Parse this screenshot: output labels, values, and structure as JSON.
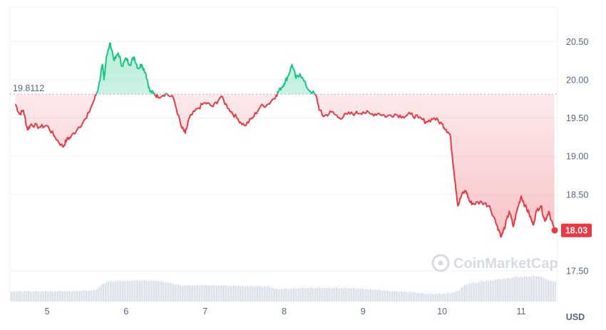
{
  "chart_data": {
    "type": "line",
    "reference_value": 19.8112,
    "reference_label": "19.8112",
    "last_value": 18.03,
    "last_label": "18.03",
    "y_ticks": [
      "20.50",
      "20.00",
      "19.50",
      "19.00",
      "18.50",
      "18.03",
      "17.50"
    ],
    "y_tick_values": [
      20.5,
      20.0,
      19.5,
      19.0,
      18.5,
      17.5
    ],
    "x_ticks": [
      "5",
      "6",
      "7",
      "8",
      "9",
      "10",
      "11"
    ],
    "x_tick_values": [
      5,
      6,
      7,
      8,
      9,
      10,
      11
    ],
    "y_unit": "USD",
    "ylim": [
      17.1,
      20.95
    ],
    "xlim": [
      4.53,
      11.46
    ],
    "grid": true,
    "colors": {
      "above": "#16c784",
      "below": "#ea3943",
      "volume": "#cfd6e4",
      "grid": "#eff2f5"
    },
    "watermark": "CoinMarketCap",
    "series": [
      {
        "x": [
          4.6,
          4.65,
          4.7,
          4.75,
          4.8,
          4.9,
          5.0,
          5.1,
          5.2,
          5.25,
          5.3,
          5.4,
          5.5,
          5.6,
          5.65,
          5.7,
          5.72,
          5.75,
          5.8,
          5.85,
          5.9,
          5.95,
          6.0,
          6.05,
          6.1,
          6.15,
          6.2,
          6.25,
          6.3,
          6.35,
          6.4,
          6.5,
          6.6,
          6.7,
          6.75,
          6.8,
          6.9,
          7.0,
          7.1,
          7.2,
          7.3,
          7.4,
          7.5,
          7.6,
          7.7,
          7.8,
          7.9,
          7.95,
          8.0,
          8.05,
          8.1,
          8.15,
          8.2,
          8.3,
          8.4,
          8.45,
          8.5,
          8.6,
          8.7,
          8.8,
          8.9,
          9.0,
          9.1,
          9.2,
          9.3,
          9.4,
          9.5,
          9.6,
          9.7,
          9.8,
          9.9,
          10.0,
          10.05,
          10.1,
          10.15,
          10.2,
          10.25,
          10.3,
          10.35,
          10.4,
          10.5,
          10.6,
          10.7,
          10.75,
          10.8,
          10.85,
          10.9,
          10.95,
          11.0,
          11.05,
          11.1,
          11.15,
          11.2,
          11.25,
          11.3,
          11.35,
          11.42
        ],
        "y": [
          19.68,
          19.55,
          19.6,
          19.35,
          19.42,
          19.38,
          19.4,
          19.25,
          19.12,
          19.22,
          19.25,
          19.38,
          19.5,
          19.75,
          19.9,
          20.2,
          20.0,
          20.3,
          20.48,
          20.25,
          20.35,
          20.18,
          20.28,
          20.2,
          20.3,
          20.15,
          20.2,
          20.08,
          19.85,
          19.82,
          19.78,
          19.82,
          19.76,
          19.38,
          19.3,
          19.5,
          19.62,
          19.7,
          19.65,
          19.78,
          19.62,
          19.5,
          19.4,
          19.5,
          19.65,
          19.68,
          19.8,
          19.88,
          19.95,
          20.05,
          20.2,
          20.02,
          20.08,
          19.88,
          19.8,
          19.6,
          19.52,
          19.58,
          19.5,
          19.55,
          19.56,
          19.58,
          19.55,
          19.56,
          19.52,
          19.55,
          19.52,
          19.55,
          19.5,
          19.45,
          19.5,
          19.42,
          19.35,
          19.28,
          18.8,
          18.35,
          18.5,
          18.55,
          18.4,
          18.38,
          18.4,
          18.35,
          18.08,
          17.95,
          18.1,
          18.28,
          18.08,
          18.3,
          18.48,
          18.35,
          18.25,
          18.1,
          18.3,
          18.35,
          18.15,
          18.28,
          18.03
        ]
      }
    ],
    "volume": {
      "x": [
        4.55,
        5.0,
        5.5,
        5.6,
        5.65,
        5.7,
        5.75,
        5.8,
        6.0,
        6.2,
        6.4,
        6.5,
        6.6,
        6.7,
        6.8,
        7.0,
        7.3,
        7.6,
        7.8,
        7.9,
        8.0,
        8.3,
        8.6,
        8.9,
        9.2,
        9.4,
        9.6,
        9.8,
        10.0,
        10.15,
        10.2,
        10.25,
        10.3,
        10.4,
        10.5,
        10.6,
        10.7,
        10.8,
        10.9,
        11.0,
        11.1,
        11.2,
        11.3,
        11.35,
        11.42
      ],
      "y": [
        0.22,
        0.22,
        0.24,
        0.25,
        0.32,
        0.4,
        0.45,
        0.46,
        0.47,
        0.48,
        0.47,
        0.44,
        0.4,
        0.36,
        0.37,
        0.37,
        0.35,
        0.34,
        0.33,
        0.27,
        0.28,
        0.3,
        0.3,
        0.29,
        0.25,
        0.22,
        0.2,
        0.16,
        0.16,
        0.19,
        0.24,
        0.32,
        0.38,
        0.42,
        0.45,
        0.47,
        0.5,
        0.52,
        0.55,
        0.56,
        0.57,
        0.58,
        0.52,
        0.46,
        0.45
      ]
    }
  }
}
